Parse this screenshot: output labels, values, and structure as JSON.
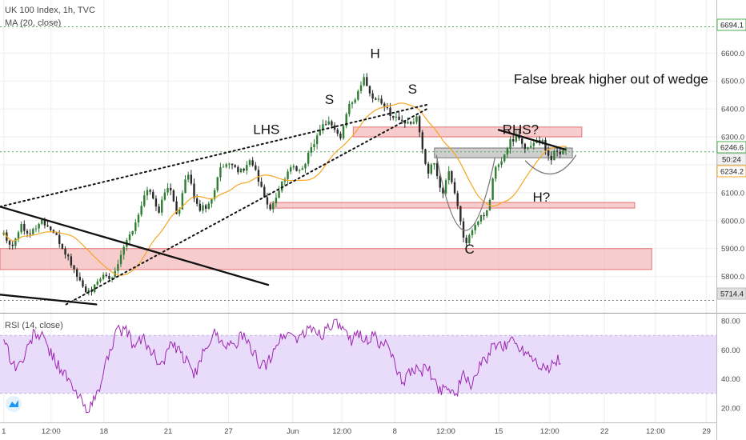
{
  "header": {
    "symbol_line": "UK 100 Index, 1h, TVC",
    "ma_line": "MA (20, close)",
    "rsi_line": "RSI (14, close)"
  },
  "colors": {
    "up": "#2e7d32",
    "down": "#2b2b2b",
    "ma": "#f5a623",
    "rsi": "#9c27b0",
    "rsi_band": "#e9dbfa",
    "zone_fill": "#f4b7b7",
    "zone_stroke": "#e57373",
    "neck_fill": "#c6c6c6",
    "grid": "#eeeeee",
    "dotted_level": "#4caf50"
  },
  "chart_data": [
    {
      "type": "candlestick",
      "title": "UK 100 Index, 1h, TVC",
      "ylim": [
        5670,
        6790
      ],
      "y_ticks": [
        5800,
        5900,
        6000,
        6100,
        6200,
        6300,
        6400,
        6500,
        6600
      ],
      "y_tick_labels": [
        "5800.0",
        "5900.0",
        "6000.0",
        "6100.0",
        "6200.0",
        "6300.0",
        "6400.0",
        "6500.0",
        "6600.0"
      ],
      "x_tick_labels": [
        "1",
        "12:00",
        "18",
        "21",
        "27",
        "Jun",
        "12:00",
        "8",
        "12:00",
        "15",
        "12:00",
        "22",
        "12:00",
        "29"
      ],
      "price_path": [
        [
          5960,
          0.02
        ],
        [
          5905,
          0.06
        ],
        [
          5985,
          0.11
        ],
        [
          5955,
          0.16
        ],
        [
          6000,
          0.22
        ],
        [
          5960,
          0.28
        ],
        [
          5880,
          0.35
        ],
        [
          5760,
          0.44
        ],
        [
          5735,
          0.48
        ],
        [
          5800,
          0.53
        ],
        [
          5790,
          0.59
        ],
        [
          5920,
          0.66
        ],
        [
          5990,
          0.72
        ],
        [
          6120,
          0.78
        ],
        [
          6035,
          0.84
        ],
        [
          6130,
          0.89
        ],
        [
          6020,
          0.94
        ],
        [
          6170,
          0.99
        ],
        [
          6040,
          1.05
        ],
        [
          6060,
          1.11
        ],
        [
          6190,
          1.17
        ],
        [
          6195,
          1.23
        ],
        [
          6175,
          1.28
        ],
        [
          6220,
          1.33
        ],
        [
          6120,
          1.38
        ],
        [
          6035,
          1.43
        ],
        [
          6120,
          1.48
        ],
        [
          6195,
          1.54
        ],
        [
          6170,
          1.59
        ],
        [
          6250,
          1.64
        ],
        [
          6310,
          1.68
        ],
        [
          6355,
          1.72
        ],
        [
          6345,
          1.76
        ],
        [
          6290,
          1.8
        ],
        [
          6420,
          1.85
        ],
        [
          6445,
          1.89
        ],
        [
          6515,
          1.93
        ],
        [
          6435,
          1.97
        ],
        [
          6435,
          2.01
        ],
        [
          6395,
          2.05
        ],
        [
          6370,
          2.09
        ],
        [
          6355,
          2.13
        ],
        [
          6340,
          2.17
        ],
        [
          6370,
          2.21
        ],
        [
          6170,
          2.26
        ],
        [
          6205,
          2.3
        ],
        [
          6090,
          2.34
        ],
        [
          6180,
          2.38
        ],
        [
          6060,
          2.42
        ],
        [
          5920,
          2.46
        ],
        [
          5955,
          2.5
        ],
        [
          6010,
          2.54
        ],
        [
          6030,
          2.58
        ],
        [
          6190,
          2.62
        ],
        [
          6210,
          2.66
        ],
        [
          6290,
          2.7
        ],
        [
          6300,
          2.74
        ],
        [
          6250,
          2.78
        ],
        [
          6280,
          2.82
        ],
        [
          6290,
          2.85
        ],
        [
          6275,
          2.88
        ],
        [
          6215,
          2.91
        ],
        [
          6255,
          2.94
        ],
        [
          6245,
          2.97
        ],
        [
          6260,
          3.0
        ]
      ],
      "ma_period": 20,
      "last_price": "6246.6",
      "last_price_countdown": "50:24",
      "ma_value": "6234.2",
      "level_high": "6694.1",
      "level_low": "5714.4",
      "levels": {
        "top_dotted": 6694.1,
        "bottom_dotted": 5714.4,
        "green_dotted": 6246.6
      },
      "zones": [
        {
          "name": "upper-resistance-zone",
          "low": 6300,
          "high": 6335,
          "x0": 1.87,
          "x1": 3.08
        },
        {
          "name": "mid-support-zone",
          "low": 6045,
          "high": 6065,
          "x0": 1.43,
          "x1": 3.36
        },
        {
          "name": "lower-support-zone",
          "low": 5825,
          "high": 5900,
          "x0": 0.0,
          "x1": 3.45
        },
        {
          "name": "neckline-zone",
          "low": 6225,
          "high": 6260,
          "x0": 2.3,
          "x1": 3.03
        }
      ],
      "annotations": [
        {
          "text": "H",
          "x": 1.96,
          "y": 6582
        },
        {
          "text": "S",
          "x": 1.72,
          "y": 6418
        },
        {
          "text": "S",
          "x": 2.16,
          "y": 6455
        },
        {
          "text": "LHS",
          "x": 1.34,
          "y": 6310
        },
        {
          "text": "False break higher out of wedge",
          "x": 2.72,
          "y": 6490
        },
        {
          "text": "RHS?",
          "x": 2.66,
          "y": 6310
        },
        {
          "text": "H?",
          "x": 2.82,
          "y": 6068
        },
        {
          "text": "C",
          "x": 2.46,
          "y": 5882
        }
      ],
      "trendlines": [
        {
          "name": "wedge-upper-line",
          "x0": 0.0,
          "y0": 6050,
          "x1": 2.26,
          "y1": 6415
        },
        {
          "name": "wedge-lower-line",
          "x0": 0.35,
          "y0": 5700,
          "x1": 2.26,
          "y1": 6400
        },
        {
          "name": "falling-trendline",
          "x0": 0.0,
          "y0": 6050,
          "x1": 1.42,
          "y1": 5770
        },
        {
          "name": "lower-falling-trendline",
          "x0": 0.0,
          "y0": 5735,
          "x1": 0.51,
          "y1": 5700
        },
        {
          "name": "rhs-down-line",
          "x0": 2.64,
          "y0": 6325,
          "x1": 2.99,
          "y1": 6255
        }
      ]
    },
    {
      "type": "line",
      "title": "RSI (14, close)",
      "ylim": [
        10,
        85
      ],
      "y_ticks": [
        20,
        40,
        60,
        80
      ],
      "y_tick_labels": [
        "20.00",
        "40.00",
        "60.00",
        "80.00"
      ],
      "band": [
        30,
        70
      ],
      "rsi_path": [
        [
          70,
          0.02
        ],
        [
          52,
          0.06
        ],
        [
          48,
          0.09
        ],
        [
          55,
          0.13
        ],
        [
          72,
          0.18
        ],
        [
          68,
          0.23
        ],
        [
          55,
          0.28
        ],
        [
          44,
          0.34
        ],
        [
          32,
          0.39
        ],
        [
          25,
          0.43
        ],
        [
          20,
          0.46
        ],
        [
          22,
          0.49
        ],
        [
          35,
          0.53
        ],
        [
          60,
          0.58
        ],
        [
          72,
          0.62
        ],
        [
          75,
          0.66
        ],
        [
          62,
          0.71
        ],
        [
          68,
          0.76
        ],
        [
          57,
          0.81
        ],
        [
          50,
          0.86
        ],
        [
          64,
          0.9
        ],
        [
          58,
          0.95
        ],
        [
          50,
          1.0
        ],
        [
          42,
          1.04
        ],
        [
          60,
          1.08
        ],
        [
          72,
          1.13
        ],
        [
          66,
          1.18
        ],
        [
          62,
          1.23
        ],
        [
          70,
          1.28
        ],
        [
          60,
          1.33
        ],
        [
          52,
          1.37
        ],
        [
          48,
          1.41
        ],
        [
          64,
          1.46
        ],
        [
          72,
          1.52
        ],
        [
          68,
          1.57
        ],
        [
          72,
          1.62
        ],
        [
          75,
          1.66
        ],
        [
          70,
          1.7
        ],
        [
          78,
          1.75
        ],
        [
          76,
          1.8
        ],
        [
          66,
          1.85
        ],
        [
          72,
          1.9
        ],
        [
          66,
          1.95
        ],
        [
          70,
          1.98
        ],
        [
          62,
          2.02
        ],
        [
          66,
          2.06
        ],
        [
          42,
          2.1
        ],
        [
          38,
          2.14
        ],
        [
          48,
          2.18
        ],
        [
          44,
          2.22
        ],
        [
          48,
          2.26
        ],
        [
          38,
          2.3
        ],
        [
          32,
          2.33
        ],
        [
          36,
          2.37
        ],
        [
          28,
          2.41
        ],
        [
          42,
          2.45
        ],
        [
          36,
          2.49
        ],
        [
          46,
          2.53
        ],
        [
          55,
          2.58
        ],
        [
          64,
          2.62
        ],
        [
          60,
          2.66
        ],
        [
          68,
          2.7
        ],
        [
          62,
          2.75
        ],
        [
          58,
          2.8
        ],
        [
          50,
          2.86
        ],
        [
          46,
          2.9
        ],
        [
          52,
          2.94
        ],
        [
          54,
          2.97
        ]
      ]
    }
  ]
}
